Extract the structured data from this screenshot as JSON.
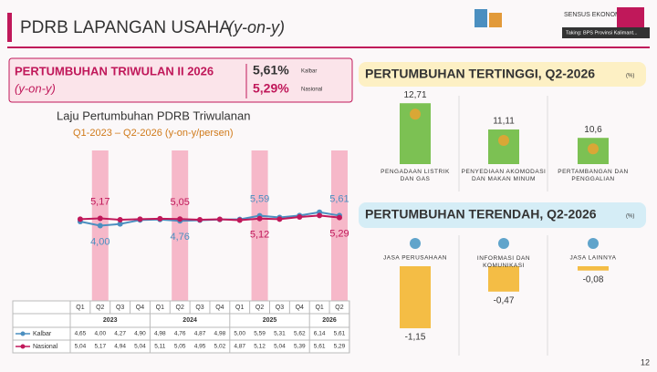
{
  "header": {
    "title": "PDRB LAPANGAN USAHA",
    "subtitle": "(y-on-y)",
    "logo_text": "SENSUS EKONOMI",
    "caption": "Taking: BPS Provinsi Kalimant...",
    "page": "12"
  },
  "summary": {
    "title": "PERTUMBUHAN TRIWULAN II 2026",
    "subtitle": "(y-on-y)",
    "kalbar_value": "5,61%",
    "kalbar_label": "Kalbar",
    "nasional_value": "5,29%",
    "nasional_label": "Nasional"
  },
  "chart_data": [
    {
      "type": "line",
      "title": "Laju Pertumbuhan PDRB Triwulanan",
      "subtitle": "Q1-2023 – Q2-2026 (y-on-y/persen)",
      "categories": [
        "Q1",
        "Q2",
        "Q3",
        "Q4",
        "Q1",
        "Q2",
        "Q3",
        "Q4",
        "Q1",
        "Q2",
        "Q3",
        "Q4",
        "Q1",
        "Q2"
      ],
      "years": [
        "2023",
        "2024",
        "2025",
        "2026"
      ],
      "ylim": [
        -8,
        16
      ],
      "highlight_color": "#f6b8c9",
      "series": [
        {
          "name": "Kalbar",
          "color": "#4b8fc0",
          "values": [
            4.65,
            4.0,
            4.27,
            4.9,
            4.98,
            4.76,
            4.87,
            4.98,
            5.0,
            5.59,
            5.31,
            5.62,
            6.14,
            5.61
          ],
          "value_labels": [
            "4,65",
            "4,00",
            "4,27",
            "4,90",
            "4,98",
            "4,76",
            "4,87",
            "4,98",
            "5,00",
            "5,59",
            "5,31",
            "5,62",
            "6,14",
            "5,61"
          ]
        },
        {
          "name": "Nasional",
          "color": "#c0185a",
          "values": [
            5.04,
            5.17,
            4.94,
            5.04,
            5.11,
            5.05,
            4.95,
            5.02,
            4.87,
            5.12,
            5.04,
            5.39,
            5.61,
            5.29
          ],
          "value_labels": [
            "5,04",
            "5,17",
            "4,94",
            "5,04",
            "5,11",
            "5,05",
            "4,95",
            "5,02",
            "4,87",
            "5,12",
            "5,04",
            "5,39",
            "5,61",
            "5,29"
          ]
        }
      ]
    },
    {
      "type": "bar",
      "title": "PERTUMBUHAN TERTINGGI, Q2-2026",
      "unit": "(%)",
      "color": "#7cc153",
      "categories": [
        "PENGADAAN LISTRIK DAN GAS",
        "PENYEDIAAN AKOMODASI DAN MAKAN MINUM",
        "PERTAMBANGAN DAN PENGGALIAN"
      ],
      "values": [
        12.71,
        11.11,
        10.6
      ],
      "value_labels": [
        "12,71",
        "11,11",
        "10,6"
      ],
      "ylim": [
        9,
        13
      ]
    },
    {
      "type": "bar",
      "title": "PERTUMBUHAN TERENDAH, Q2-2026",
      "unit": "(%)",
      "color": "#f4bd45",
      "categories": [
        "JASA PERUSAHAAN",
        "INFORMASI DAN KOMUNIKASI",
        "JASA LAINNYA"
      ],
      "values": [
        -1.15,
        -0.47,
        -0.08
      ],
      "value_labels": [
        "-1,15",
        "-0,47",
        "-0,08"
      ],
      "ylim": [
        -1.2,
        0
      ]
    }
  ]
}
